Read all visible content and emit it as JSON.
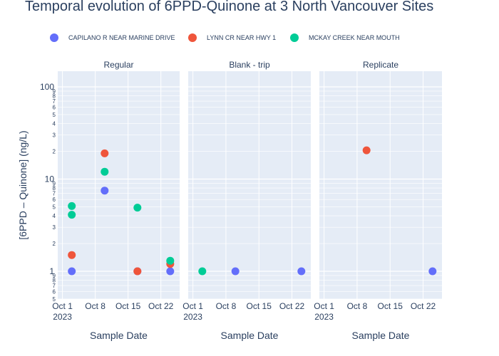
{
  "chart_data": {
    "type": "scatter",
    "title": "Temporal evolution of 6PPD-Quinone at 3 North Vancouver Sites",
    "ylabel": "[6PPD – Quinone] (ng/L)",
    "xlabel": "Sample Date",
    "y_scale": "log",
    "y_major_ticks": [
      "1",
      "10",
      "100"
    ],
    "y_minor_ticks": [
      "2",
      "3",
      "4",
      "5",
      "6",
      "7",
      "8",
      "9"
    ],
    "x_ticks": [
      {
        "date": "2023-10-01",
        "label": "Oct 1",
        "sublabel": "2023"
      },
      {
        "date": "2023-10-08",
        "label": "Oct 8",
        "sublabel": ""
      },
      {
        "date": "2023-10-15",
        "label": "Oct 15",
        "sublabel": ""
      },
      {
        "date": "2023-10-22",
        "label": "Oct 22",
        "sublabel": ""
      }
    ],
    "x_range": [
      "2023-09-30",
      "2023-10-26"
    ],
    "grid": true,
    "legend_placement": "top",
    "series": [
      {
        "name": "CAPILANO R NEAR MARINE DRIVE",
        "color": "#636efa"
      },
      {
        "name": "LYNN CR NEAR HWY 1",
        "color": "#ef553b"
      },
      {
        "name": "MCKAY CREEK NEAR MOUTH",
        "color": "#00cc96"
      }
    ],
    "facets": [
      {
        "title": "Regular",
        "points": [
          {
            "series": 0,
            "x": "2023-10-03",
            "y": 1
          },
          {
            "series": 0,
            "x": "2023-10-10",
            "y": 7.5
          },
          {
            "series": 0,
            "x": "2023-10-17",
            "y": 1
          },
          {
            "series": 0,
            "x": "2023-10-24",
            "y": 1
          },
          {
            "series": 1,
            "x": "2023-10-03",
            "y": 1.5
          },
          {
            "series": 1,
            "x": "2023-10-10",
            "y": 19
          },
          {
            "series": 1,
            "x": "2023-10-17",
            "y": 1
          },
          {
            "series": 1,
            "x": "2023-10-24",
            "y": 1.2
          },
          {
            "series": 2,
            "x": "2023-10-03",
            "y": 5.1
          },
          {
            "series": 2,
            "x": "2023-10-03",
            "y": 4.1
          },
          {
            "series": 2,
            "x": "2023-10-10",
            "y": 12
          },
          {
            "series": 2,
            "x": "2023-10-17",
            "y": 4.9
          },
          {
            "series": 2,
            "x": "2023-10-24",
            "y": 1.3
          }
        ]
      },
      {
        "title": "Blank - trip",
        "points": [
          {
            "series": 2,
            "x": "2023-10-03",
            "y": 1
          },
          {
            "series": 0,
            "x": "2023-10-10",
            "y": 1
          },
          {
            "series": 0,
            "x": "2023-10-24",
            "y": 1
          }
        ]
      },
      {
        "title": "Replicate",
        "points": [
          {
            "series": 1,
            "x": "2023-10-10",
            "y": 20.5
          },
          {
            "series": 0,
            "x": "2023-10-24",
            "y": 1
          }
        ]
      }
    ]
  }
}
